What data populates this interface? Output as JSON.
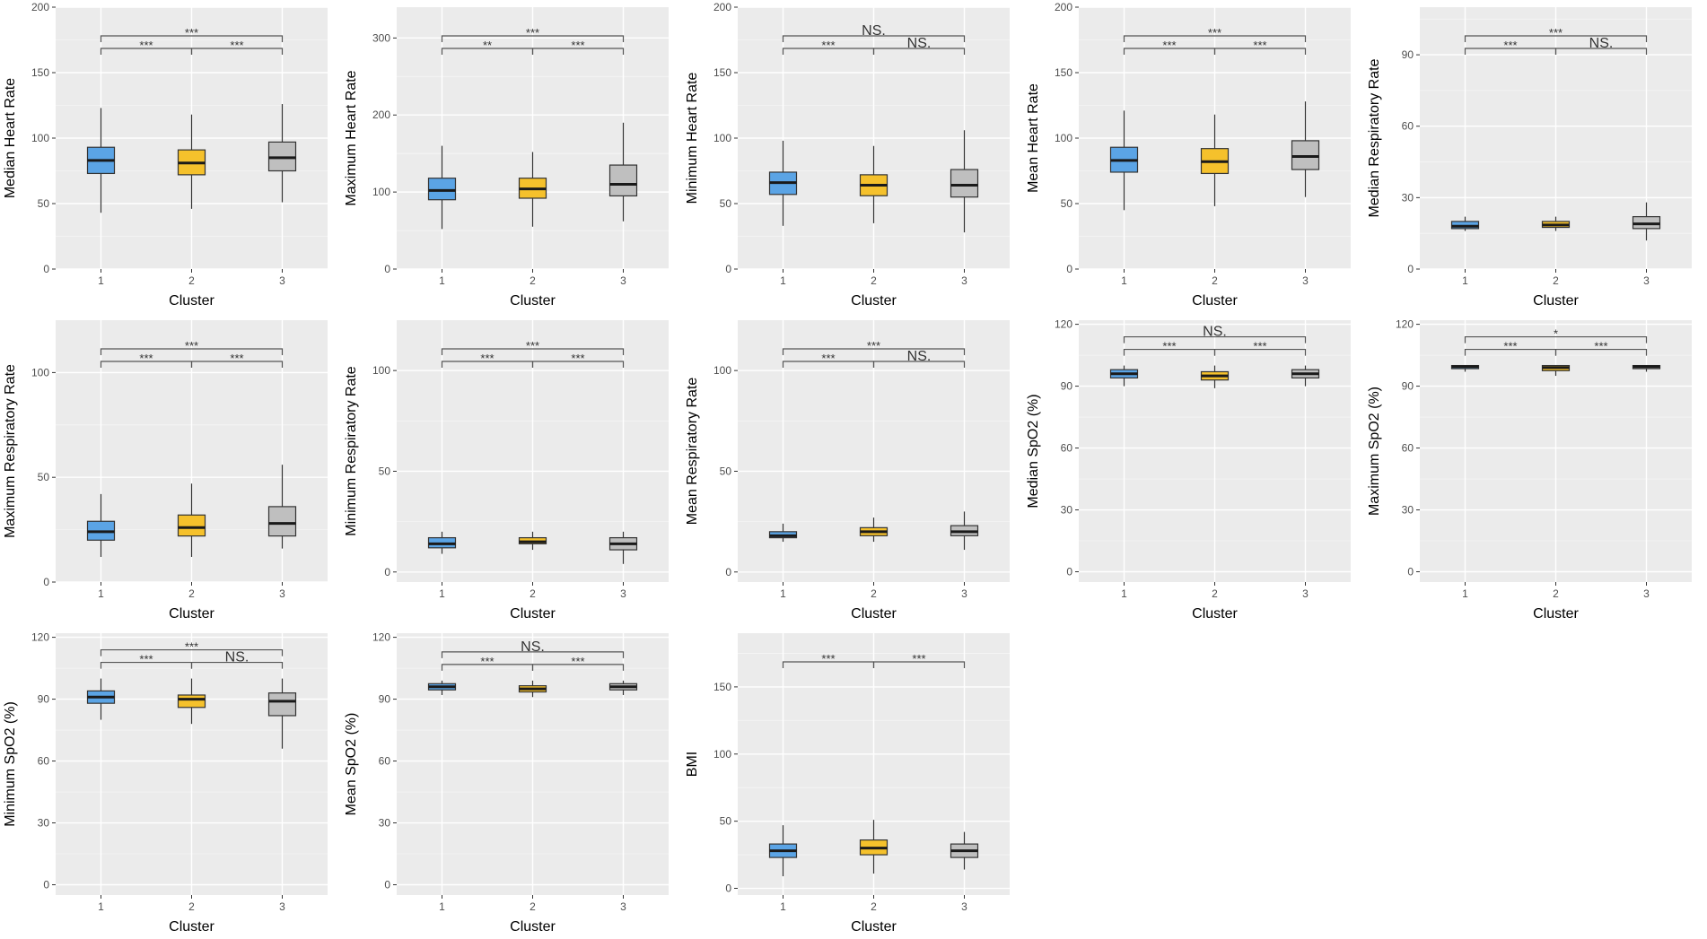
{
  "colors": {
    "1": "#5ba4e5",
    "2": "#f5c12c",
    "3": "#bfbfbf"
  },
  "x_axis_label": "Cluster",
  "chart_data": [
    {
      "type": "boxplot",
      "ylabel": "Median Heart Rate",
      "categories": [
        "1",
        "2",
        "3"
      ],
      "ylim": [
        0,
        200
      ],
      "yticks": [
        0,
        50,
        100,
        150,
        200
      ],
      "boxes": [
        {
          "min": 43,
          "q1": 73,
          "median": 83,
          "q3": 93,
          "max": 123
        },
        {
          "min": 46,
          "q1": 72,
          "median": 81,
          "q3": 91,
          "max": 118
        },
        {
          "min": 51,
          "q1": 75,
          "median": 85,
          "q3": 97,
          "max": 126
        }
      ],
      "sig": [
        {
          "from": 1,
          "to": 3,
          "label": "***",
          "level": 1
        },
        {
          "from": 1,
          "to": 2,
          "label": "***",
          "level": 0
        },
        {
          "from": 2,
          "to": 3,
          "label": "***",
          "level": 0
        }
      ]
    },
    {
      "type": "boxplot",
      "ylabel": "Maximum Heart Rate",
      "categories": [
        "1",
        "2",
        "3"
      ],
      "ylim": [
        0,
        340
      ],
      "yticks": [
        0,
        100,
        200,
        300
      ],
      "boxes": [
        {
          "min": 52,
          "q1": 90,
          "median": 102,
          "q3": 118,
          "max": 160
        },
        {
          "min": 55,
          "q1": 92,
          "median": 104,
          "q3": 118,
          "max": 152
        },
        {
          "min": 62,
          "q1": 95,
          "median": 110,
          "q3": 135,
          "max": 190
        }
      ],
      "sig": [
        {
          "from": 1,
          "to": 3,
          "label": "***",
          "level": 1
        },
        {
          "from": 1,
          "to": 2,
          "label": "**",
          "level": 0
        },
        {
          "from": 2,
          "to": 3,
          "label": "***",
          "level": 0
        }
      ]
    },
    {
      "type": "boxplot",
      "ylabel": "Minimum Heart Rate",
      "categories": [
        "1",
        "2",
        "3"
      ],
      "ylim": [
        0,
        200
      ],
      "yticks": [
        0,
        50,
        100,
        150,
        200
      ],
      "boxes": [
        {
          "min": 33,
          "q1": 57,
          "median": 66,
          "q3": 74,
          "max": 98
        },
        {
          "min": 35,
          "q1": 56,
          "median": 64,
          "q3": 72,
          "max": 94
        },
        {
          "min": 28,
          "q1": 55,
          "median": 64,
          "q3": 76,
          "max": 106
        }
      ],
      "sig": [
        {
          "from": 1,
          "to": 3,
          "label": "NS.",
          "level": 1
        },
        {
          "from": 1,
          "to": 2,
          "label": "***",
          "level": 0
        },
        {
          "from": 2,
          "to": 3,
          "label": "NS.",
          "level": 0
        }
      ]
    },
    {
      "type": "boxplot",
      "ylabel": "Mean Heart Rate",
      "categories": [
        "1",
        "2",
        "3"
      ],
      "ylim": [
        0,
        200
      ],
      "yticks": [
        0,
        50,
        100,
        150,
        200
      ],
      "boxes": [
        {
          "min": 45,
          "q1": 74,
          "median": 83,
          "q3": 93,
          "max": 121
        },
        {
          "min": 48,
          "q1": 73,
          "median": 82,
          "q3": 92,
          "max": 118
        },
        {
          "min": 55,
          "q1": 76,
          "median": 86,
          "q3": 98,
          "max": 128
        }
      ],
      "sig": [
        {
          "from": 1,
          "to": 3,
          "label": "***",
          "level": 1
        },
        {
          "from": 1,
          "to": 2,
          "label": "***",
          "level": 0
        },
        {
          "from": 2,
          "to": 3,
          "label": "***",
          "level": 0
        }
      ]
    },
    {
      "type": "boxplot",
      "ylabel": "Median Respiratory Rate",
      "categories": [
        "1",
        "2",
        "3"
      ],
      "ylim": [
        0,
        110
      ],
      "yticks": [
        0,
        30,
        60,
        90
      ],
      "boxes": [
        {
          "min": 16,
          "q1": 17,
          "median": 18,
          "q3": 20,
          "max": 22
        },
        {
          "min": 16,
          "q1": 17.5,
          "median": 18.5,
          "q3": 20,
          "max": 22
        },
        {
          "min": 12,
          "q1": 17,
          "median": 19,
          "q3": 22,
          "max": 28
        }
      ],
      "sig": [
        {
          "from": 1,
          "to": 3,
          "label": "***",
          "level": 1
        },
        {
          "from": 1,
          "to": 2,
          "label": "***",
          "level": 0
        },
        {
          "from": 2,
          "to": 3,
          "label": "NS.",
          "level": 0
        }
      ]
    },
    {
      "type": "boxplot",
      "ylabel": "Maximum Respiratory Rate",
      "categories": [
        "1",
        "2",
        "3"
      ],
      "ylim": [
        0,
        125
      ],
      "yticks": [
        0,
        50,
        100
      ],
      "boxes": [
        {
          "min": 12,
          "q1": 20,
          "median": 24,
          "q3": 29,
          "max": 42
        },
        {
          "min": 12,
          "q1": 22,
          "median": 26,
          "q3": 32,
          "max": 47
        },
        {
          "min": 16,
          "q1": 22,
          "median": 28,
          "q3": 36,
          "max": 56
        }
      ],
      "sig": [
        {
          "from": 1,
          "to": 3,
          "label": "***",
          "level": 1
        },
        {
          "from": 1,
          "to": 2,
          "label": "***",
          "level": 0
        },
        {
          "from": 2,
          "to": 3,
          "label": "***",
          "level": 0
        }
      ]
    },
    {
      "type": "boxplot",
      "ylabel": "Minimum Respiratory Rate",
      "categories": [
        "1",
        "2",
        "3"
      ],
      "ylim": [
        -5,
        125
      ],
      "yticks": [
        0,
        50,
        100
      ],
      "boxes": [
        {
          "min": 9,
          "q1": 12,
          "median": 14,
          "q3": 17,
          "max": 20
        },
        {
          "min": 11,
          "q1": 14,
          "median": 15,
          "q3": 17,
          "max": 20
        },
        {
          "min": 4,
          "q1": 11,
          "median": 14,
          "q3": 17,
          "max": 20
        }
      ],
      "sig": [
        {
          "from": 1,
          "to": 3,
          "label": "***",
          "level": 1
        },
        {
          "from": 1,
          "to": 2,
          "label": "***",
          "level": 0
        },
        {
          "from": 2,
          "to": 3,
          "label": "***",
          "level": 0
        }
      ]
    },
    {
      "type": "boxplot",
      "ylabel": "Mean Respiratory Rate",
      "categories": [
        "1",
        "2",
        "3"
      ],
      "ylim": [
        -5,
        125
      ],
      "yticks": [
        0,
        50,
        100
      ],
      "boxes": [
        {
          "min": 15,
          "q1": 17,
          "median": 18,
          "q3": 20,
          "max": 24
        },
        {
          "min": 15,
          "q1": 18,
          "median": 20,
          "q3": 22,
          "max": 27
        },
        {
          "min": 11,
          "q1": 18,
          "median": 20,
          "q3": 23,
          "max": 30
        }
      ],
      "sig": [
        {
          "from": 1,
          "to": 3,
          "label": "***",
          "level": 1
        },
        {
          "from": 1,
          "to": 2,
          "label": "***",
          "level": 0
        },
        {
          "from": 2,
          "to": 3,
          "label": "NS.",
          "level": 0
        }
      ]
    },
    {
      "type": "boxplot",
      "ylabel": "Median SpO2 (%)",
      "categories": [
        "1",
        "2",
        "3"
      ],
      "ylim": [
        -5,
        122
      ],
      "yticks": [
        0,
        30,
        60,
        90,
        120
      ],
      "boxes": [
        {
          "min": 90,
          "q1": 94,
          "median": 96,
          "q3": 98,
          "max": 100
        },
        {
          "min": 89,
          "q1": 93,
          "median": 95,
          "q3": 97,
          "max": 100
        },
        {
          "min": 90,
          "q1": 94,
          "median": 96,
          "q3": 98,
          "max": 100
        }
      ],
      "sig": [
        {
          "from": 1,
          "to": 3,
          "label": "NS.",
          "level": 1
        },
        {
          "from": 1,
          "to": 2,
          "label": "***",
          "level": 0
        },
        {
          "from": 2,
          "to": 3,
          "label": "***",
          "level": 0
        }
      ]
    },
    {
      "type": "boxplot",
      "ylabel": "Maximum SpO2 (%)",
      "categories": [
        "1",
        "2",
        "3"
      ],
      "ylim": [
        -5,
        122
      ],
      "yticks": [
        0,
        30,
        60,
        90,
        120
      ],
      "boxes": [
        {
          "min": 97,
          "q1": 98.5,
          "median": 99.5,
          "q3": 100,
          "max": 100
        },
        {
          "min": 95,
          "q1": 97.5,
          "median": 99,
          "q3": 100,
          "max": 100
        },
        {
          "min": 97,
          "q1": 98.5,
          "median": 99.5,
          "q3": 100,
          "max": 100
        }
      ],
      "sig": [
        {
          "from": 1,
          "to": 3,
          "label": "*",
          "level": 1
        },
        {
          "from": 1,
          "to": 2,
          "label": "***",
          "level": 0
        },
        {
          "from": 2,
          "to": 3,
          "label": "***",
          "level": 0
        }
      ]
    },
    {
      "type": "boxplot",
      "ylabel": "Minimum SpO2 (%)",
      "categories": [
        "1",
        "2",
        "3"
      ],
      "ylim": [
        -5,
        122
      ],
      "yticks": [
        0,
        30,
        60,
        90,
        120
      ],
      "boxes": [
        {
          "min": 80,
          "q1": 88,
          "median": 91,
          "q3": 94,
          "max": 100
        },
        {
          "min": 78,
          "q1": 86,
          "median": 90,
          "q3": 92,
          "max": 100
        },
        {
          "min": 66,
          "q1": 82,
          "median": 89,
          "q3": 93,
          "max": 100
        }
      ],
      "sig": [
        {
          "from": 1,
          "to": 3,
          "label": "***",
          "level": 1
        },
        {
          "from": 1,
          "to": 2,
          "label": "***",
          "level": 0
        },
        {
          "from": 2,
          "to": 3,
          "label": "NS.",
          "level": 0
        }
      ]
    },
    {
      "type": "boxplot",
      "ylabel": "Mean SpO2 (%)",
      "categories": [
        "1",
        "2",
        "3"
      ],
      "ylim": [
        -5,
        122
      ],
      "yticks": [
        0,
        30,
        60,
        90,
        120
      ],
      "boxes": [
        {
          "min": 92,
          "q1": 94.5,
          "median": 96,
          "q3": 97.5,
          "max": 99
        },
        {
          "min": 91,
          "q1": 93.5,
          "median": 95,
          "q3": 96.5,
          "max": 99
        },
        {
          "min": 92,
          "q1": 94.5,
          "median": 96,
          "q3": 97.5,
          "max": 99
        }
      ],
      "sig": [
        {
          "from": 1,
          "to": 3,
          "label": "NS.",
          "level": 1
        },
        {
          "from": 1,
          "to": 2,
          "label": "***",
          "level": 0
        },
        {
          "from": 2,
          "to": 3,
          "label": "***",
          "level": 0
        }
      ]
    },
    {
      "type": "boxplot",
      "ylabel": "BMI",
      "categories": [
        "1",
        "2",
        "3"
      ],
      "ylim": [
        -5,
        190
      ],
      "yticks": [
        0,
        50,
        100,
        150
      ],
      "boxes": [
        {
          "min": 9,
          "q1": 23,
          "median": 28,
          "q3": 33,
          "max": 47
        },
        {
          "min": 11,
          "q1": 25,
          "median": 30,
          "q3": 36,
          "max": 51
        },
        {
          "min": 14,
          "q1": 23,
          "median": 28,
          "q3": 33,
          "max": 42
        }
      ],
      "sig": [
        {
          "from": 1,
          "to": 2,
          "label": "***",
          "level": 0
        },
        {
          "from": 2,
          "to": 3,
          "label": "***",
          "level": 0
        }
      ]
    }
  ]
}
